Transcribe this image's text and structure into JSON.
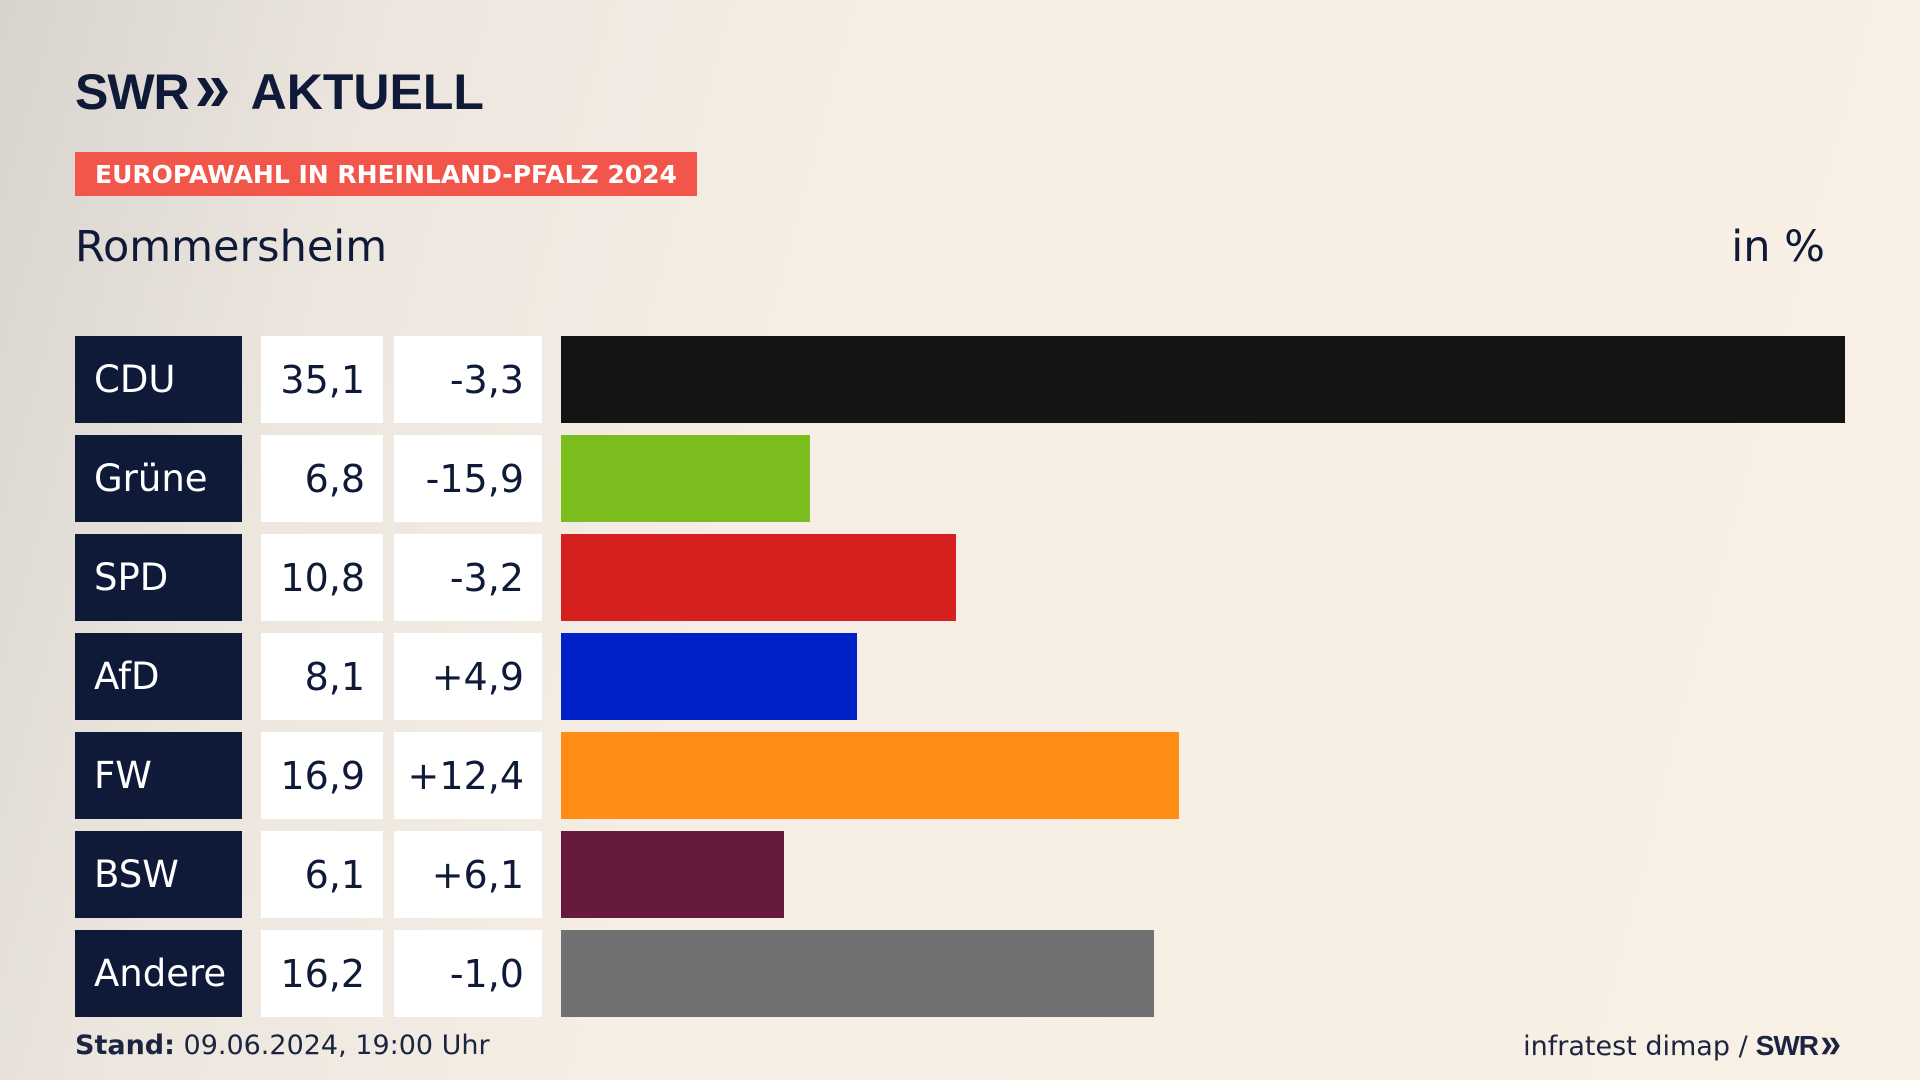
{
  "brand": {
    "name": "SWR",
    "section": "AKTUELL"
  },
  "badge": "EUROPAWAHL IN RHEINLAND-PFALZ 2024",
  "place": "Rommersheim",
  "unit": "in %",
  "chart_data": {
    "type": "bar",
    "orientation": "horizontal",
    "categories": [
      "CDU",
      "Grüne",
      "SPD",
      "AfD",
      "FW",
      "BSW",
      "Andere"
    ],
    "values": [
      35.1,
      6.8,
      10.8,
      8.1,
      16.9,
      6.1,
      16.2
    ],
    "value_labels": [
      "35,1",
      "6,8",
      "10,8",
      "8,1",
      "16,9",
      "6,1",
      "16,2"
    ],
    "change_labels": [
      "-3,3",
      "-15,9",
      "-3,2",
      "+4,9",
      "+12,4",
      "+6,1",
      "-1,0"
    ],
    "changes": [
      -3.3,
      -15.9,
      -3.2,
      4.9,
      12.4,
      6.1,
      -1.0
    ],
    "colors": [
      "#141414",
      "#7bbd1c",
      "#d61f1f",
      "#0021c8",
      "#ff8c14",
      "#661a3d",
      "#707173"
    ],
    "xlim": [
      0,
      35.1
    ]
  },
  "footer": {
    "stand_label": "Stand:",
    "stand_value": "09.06.2024, 19:00 Uhr",
    "source": "infratest dimap /",
    "source_brand": "SWR"
  }
}
